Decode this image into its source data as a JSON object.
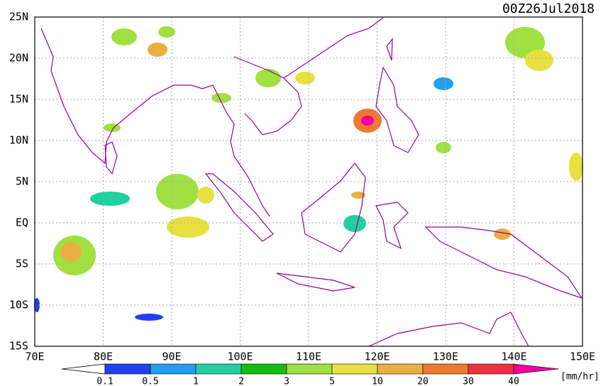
{
  "map": {
    "title": "00Z26Jul2018",
    "lon_range": [
      70,
      150
    ],
    "lat_range": [
      -15,
      25
    ],
    "lon_ticks": [
      {
        "value": 70,
        "label": "70E"
      },
      {
        "value": 80,
        "label": "80E"
      },
      {
        "value": 90,
        "label": "90E"
      },
      {
        "value": 100,
        "label": "100E"
      },
      {
        "value": 110,
        "label": "110E"
      },
      {
        "value": 120,
        "label": "120E"
      },
      {
        "value": 130,
        "label": "130E"
      },
      {
        "value": 140,
        "label": "140E"
      },
      {
        "value": 150,
        "label": "150E"
      }
    ],
    "lat_ticks": [
      {
        "value": 25,
        "label": "25N"
      },
      {
        "value": 20,
        "label": "20N"
      },
      {
        "value": 15,
        "label": "15N"
      },
      {
        "value": 10,
        "label": "10N"
      },
      {
        "value": 5,
        "label": "5N"
      },
      {
        "value": 0,
        "label": "EQ"
      },
      {
        "value": -5,
        "label": "5S"
      },
      {
        "value": -10,
        "label": "10S"
      },
      {
        "value": -15,
        "label": "15S"
      }
    ],
    "colorbar": {
      "levels": [
        0.1,
        0.5,
        1,
        2,
        3,
        5,
        10,
        20,
        30,
        40
      ],
      "colors": [
        "#2040f0",
        "#20a0f0",
        "#20d0a0",
        "#10c010",
        "#a0e040",
        "#e8e040",
        "#e8b040",
        "#f07830",
        "#f03040",
        "#f000a0"
      ],
      "unit": "[mm/hr]"
    }
  }
}
